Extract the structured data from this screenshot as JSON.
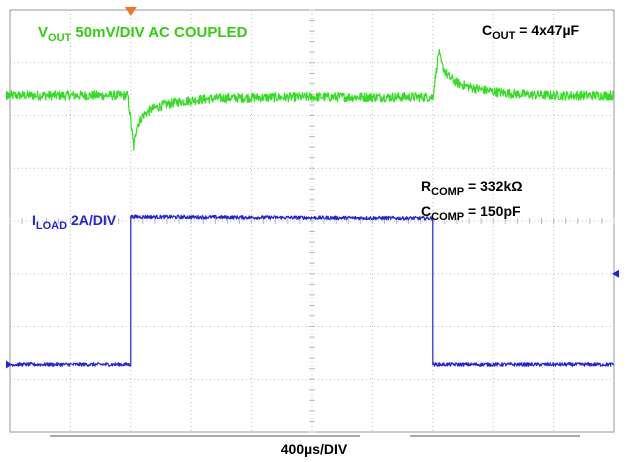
{
  "chart_data": {
    "type": "line",
    "title": "",
    "grid": true,
    "divisions": {
      "x": 10,
      "y": 8
    },
    "x_units": "div",
    "y_units": "div",
    "xlim": [
      0,
      10
    ],
    "ylim": [
      -4,
      4
    ],
    "series": [
      {
        "name": "V_OUT",
        "color": "#33dd22",
        "x": [
          0,
          1.95,
          2.05,
          2.1,
          2.2,
          2.35,
          2.55,
          2.8,
          3.1,
          3.5,
          4.0,
          5.0,
          6.0,
          7.0,
          7.1,
          7.15,
          7.25,
          7.4,
          7.6,
          7.85,
          8.15,
          8.5,
          9.0,
          10.0
        ],
        "y": [
          2.38,
          2.38,
          1.4,
          1.8,
          2.0,
          2.12,
          2.2,
          2.26,
          2.3,
          2.33,
          2.34,
          2.35,
          2.35,
          2.35,
          3.2,
          2.95,
          2.75,
          2.62,
          2.54,
          2.48,
          2.43,
          2.4,
          2.38,
          2.38
        ],
        "label": {
          "main": "V",
          "sub": "OUT",
          "rest": " 50mV/DIV AC COUPLED"
        }
      },
      {
        "name": "I_LOAD",
        "color": "#2222dd",
        "x": [
          0,
          2.0,
          2.0,
          7.0,
          7.0,
          10.0
        ],
        "y": [
          -2.72,
          -2.72,
          0.08,
          0.05,
          -2.72,
          -2.72
        ],
        "label": {
          "main": "I",
          "sub": "LOAD",
          "rest": " 2A/DIV"
        }
      }
    ],
    "annotations": {
      "cout": {
        "main": "C",
        "sub": "OUT",
        "rest": " = 4x47µF"
      },
      "rcomp": {
        "main": "R",
        "sub": "COMP",
        "rest": " = 332kΩ"
      },
      "ccomp": {
        "main": "C",
        "sub": "COMP",
        "rest": " = 150pF"
      }
    },
    "xlabel": "400µs/DIV",
    "colors": {
      "trigger_marker": "#ee7722",
      "grid": "#bbbbbb",
      "frame": "#999999",
      "ch1_marker": "#33dd22",
      "ch2_marker": "#2222dd"
    }
  }
}
